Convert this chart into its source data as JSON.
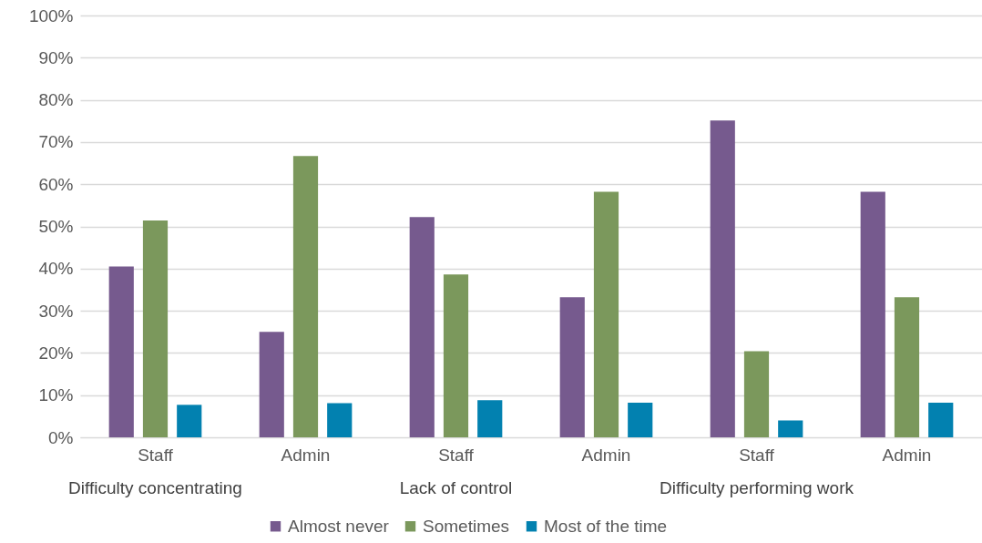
{
  "chart_data": {
    "type": "bar",
    "categories": [
      "Staff",
      "Admin",
      "Staff",
      "Admin",
      "Staff",
      "Admin"
    ],
    "series": [
      {
        "name": "Almost never",
        "color": "#765a8e",
        "values": [
          40.5,
          25,
          52.2,
          33.2,
          75.1,
          58.2
        ]
      },
      {
        "name": "Sometimes",
        "color": "#7b985c",
        "values": [
          51.4,
          66.7,
          38.6,
          58.2,
          20.4,
          33.2
        ]
      },
      {
        "name": "Most of the time",
        "color": "#0281b0",
        "values": [
          7.7,
          8.1,
          8.8,
          8.2,
          4.0,
          8.2
        ]
      }
    ],
    "annotations": [
      "Difficulty concentrating",
      "Lack of control",
      "Difficulty performing work"
    ],
    "ylim": [
      0,
      100
    ],
    "yticks": [
      {
        "value": 0,
        "label": "0%"
      },
      {
        "value": 10,
        "label": "10%"
      },
      {
        "value": 20,
        "label": "20%"
      },
      {
        "value": 30,
        "label": "30%"
      },
      {
        "value": 40,
        "label": "40%"
      },
      {
        "value": 50,
        "label": "50%"
      },
      {
        "value": 60,
        "label": "60%"
      },
      {
        "value": 70,
        "label": "70%"
      },
      {
        "value": 80,
        "label": "80%"
      },
      {
        "value": 90,
        "label": "90%"
      },
      {
        "value": 100,
        "label": "100%"
      }
    ],
    "grid": "y",
    "legend": "bottom"
  }
}
